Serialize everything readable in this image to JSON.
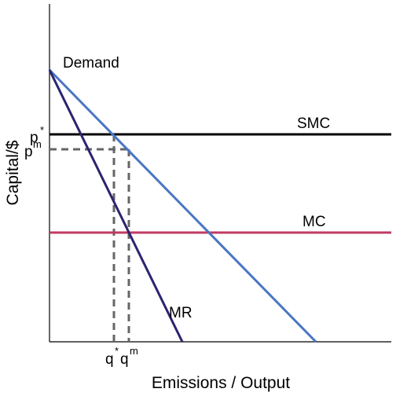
{
  "diagram": {
    "x_axis_title": "Emissions / Output",
    "y_axis_title": "Capital/$",
    "curves": {
      "demand": {
        "label": "Demand",
        "color": "#4a76c4"
      },
      "mr": {
        "label": "MR",
        "color": "#2b2470"
      },
      "smc": {
        "label": "SMC",
        "color": "#000000"
      },
      "mc": {
        "label": "MC",
        "color": "#c03a63"
      }
    },
    "guide_color": "#666666",
    "markers": {
      "p_star": {
        "base": "p",
        "superscript": "*"
      },
      "p_m": {
        "base": "p",
        "subscript": "m"
      },
      "q_star": {
        "base": "q",
        "superscript": "*"
      },
      "q_m": {
        "base": "q",
        "superscript": "m"
      }
    }
  }
}
